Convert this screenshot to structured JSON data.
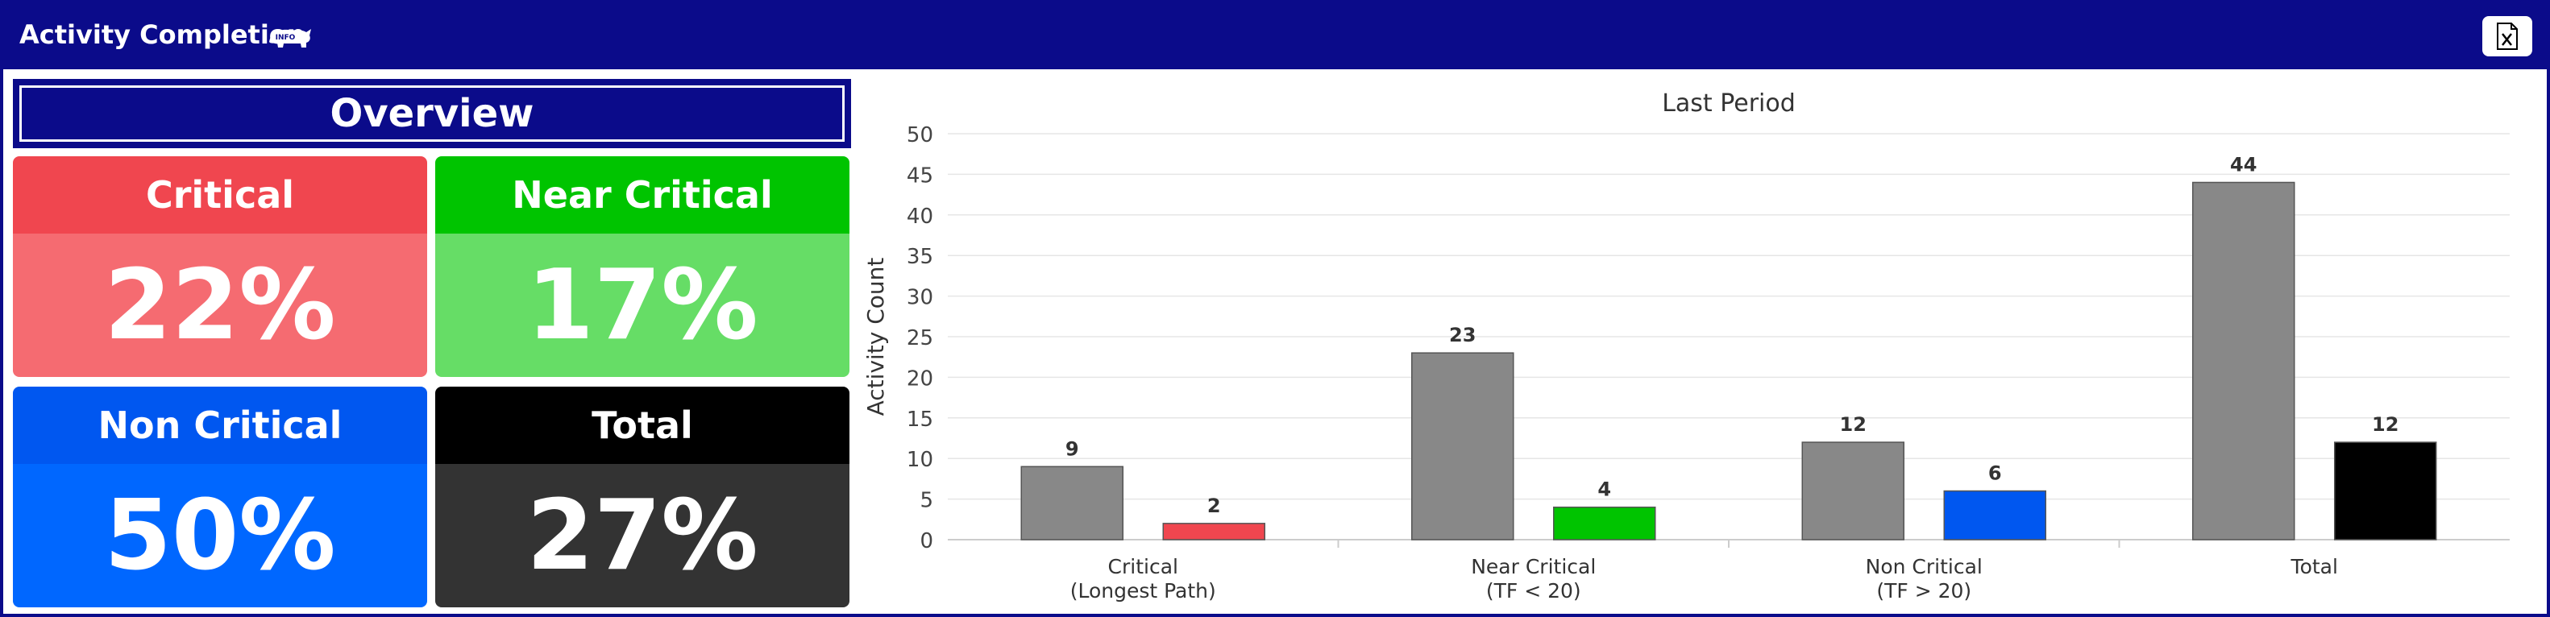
{
  "header": {
    "title": "Activity Completion",
    "info_icon_text": "INFO"
  },
  "overview": {
    "title": "Overview"
  },
  "cards": [
    {
      "label": "Critical",
      "value": "22%",
      "head_color": "#f0464f",
      "body_color": "#f56b71"
    },
    {
      "label": "Near Critical",
      "value": "17%",
      "head_color": "#00c400",
      "body_color": "#66dd66"
    },
    {
      "label": "Non Critical",
      "value": "50%",
      "head_color": "#0057f0",
      "body_color": "#0067ff"
    },
    {
      "label": "Total",
      "value": "27%",
      "head_color": "#000000",
      "body_color": "#333333"
    }
  ],
  "chart_data": {
    "type": "bar",
    "title": "Last Period",
    "ylabel": "Activity Count",
    "xlabel": "",
    "ylim": [
      0,
      50
    ],
    "yticks": [
      0,
      5,
      10,
      15,
      20,
      25,
      30,
      35,
      40,
      45,
      50
    ],
    "categories": [
      [
        "Critical",
        "(Longest Path)"
      ],
      [
        "Near Critical",
        "(TF < 20)"
      ],
      [
        "Non Critical",
        "(TF > 20)"
      ],
      [
        "Total"
      ]
    ],
    "series": [
      {
        "values": [
          9,
          23,
          12,
          44
        ],
        "colors": [
          "#888888",
          "#888888",
          "#888888",
          "#888888"
        ]
      },
      {
        "values": [
          2,
          4,
          6,
          12
        ],
        "colors": [
          "#f0464f",
          "#00c400",
          "#0057f0",
          "#000000"
        ]
      }
    ],
    "grid": true,
    "legend": "none"
  }
}
